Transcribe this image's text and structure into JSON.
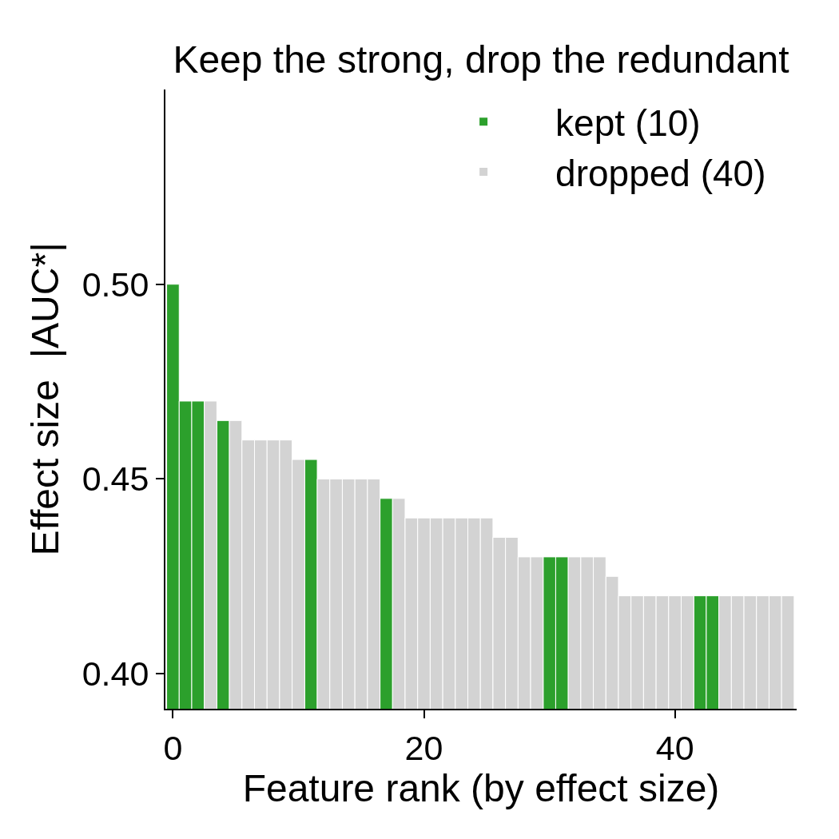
{
  "chart_data": {
    "type": "bar",
    "title": "Keep the strong, drop the redundant",
    "xlabel": "Feature rank (by effect size)",
    "ylabel": "Effect size  |AUC*|",
    "x": [
      0,
      1,
      2,
      3,
      4,
      5,
      6,
      7,
      8,
      9,
      10,
      11,
      12,
      13,
      14,
      15,
      16,
      17,
      18,
      19,
      20,
      21,
      22,
      23,
      24,
      25,
      26,
      27,
      28,
      29,
      30,
      31,
      32,
      33,
      34,
      35,
      36,
      37,
      38,
      39,
      40,
      41,
      42,
      43,
      44,
      45,
      46,
      47,
      48,
      49
    ],
    "series": [
      {
        "name": "kept (10)",
        "color": "#2ca02c",
        "values": [
          0.5,
          0.47,
          0.47,
          null,
          0.465,
          null,
          null,
          null,
          null,
          null,
          null,
          0.455,
          null,
          null,
          null,
          null,
          null,
          0.445,
          null,
          null,
          null,
          null,
          null,
          null,
          null,
          null,
          null,
          null,
          null,
          null,
          0.43,
          0.43,
          null,
          null,
          null,
          null,
          null,
          null,
          null,
          null,
          null,
          null,
          0.42,
          0.42,
          null,
          null,
          null,
          null,
          null,
          null
        ]
      },
      {
        "name": "dropped (40)",
        "color": "#d3d3d3",
        "values": [
          null,
          null,
          null,
          0.47,
          null,
          0.465,
          0.46,
          0.46,
          0.46,
          0.46,
          0.455,
          null,
          0.45,
          0.45,
          0.45,
          0.45,
          0.45,
          null,
          0.445,
          0.44,
          0.44,
          0.44,
          0.44,
          0.44,
          0.44,
          0.44,
          0.435,
          0.435,
          0.43,
          0.43,
          null,
          null,
          0.43,
          0.43,
          0.43,
          0.425,
          0.42,
          0.42,
          0.42,
          0.42,
          0.42,
          0.42,
          null,
          null,
          0.42,
          0.42,
          0.42,
          0.42,
          0.42,
          0.42
        ]
      }
    ],
    "xlim": [
      -0.6,
      49.7
    ],
    "xticks": [
      0,
      20,
      40
    ],
    "ylim": [
      0.391,
      0.55
    ],
    "yticks": [
      {
        "value": 0.4,
        "label": "0.40"
      },
      {
        "value": 0.45,
        "label": "0.45"
      },
      {
        "value": 0.5,
        "label": "0.50"
      }
    ],
    "legend": "top right"
  }
}
